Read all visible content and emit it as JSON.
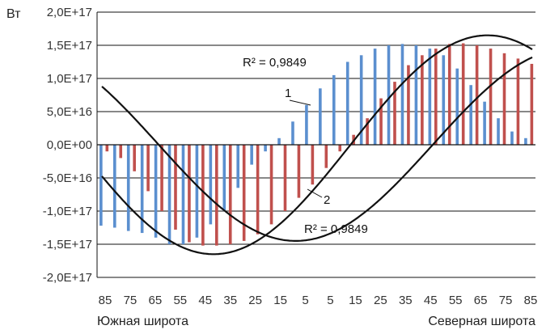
{
  "chart_data": {
    "type": "bar",
    "ylabel": "Вт",
    "ylim": [
      -2e+17,
      2e+17
    ],
    "yticks": [
      {
        "value": 2e+17,
        "label": "2,0E+17"
      },
      {
        "value": 1.5e+17,
        "label": "1,5E+17"
      },
      {
        "value": 1e+17,
        "label": "1,0E+17"
      },
      {
        "value": 5e+16,
        "label": "5,0E+16"
      },
      {
        "value": 0,
        "label": "0,0E+00"
      },
      {
        "value": -5e+16,
        "label": "-5,0E+16"
      },
      {
        "value": -1e+17,
        "label": "-1,0E+17"
      },
      {
        "value": -1.5e+17,
        "label": "-1,5E+17"
      },
      {
        "value": -2e+17,
        "label": "-2,0E+17"
      }
    ],
    "x_tick_labels": [
      "85",
      "75",
      "65",
      "55",
      "45",
      "35",
      "25",
      "15",
      "5",
      "5",
      "15",
      "25",
      "35",
      "45",
      "55",
      "65",
      "75",
      "85"
    ],
    "x_region_left": "Южная широта",
    "x_region_right": "Северная широта",
    "grid": true,
    "series": [
      {
        "color": "#5b8fcf",
        "values": [
          -1.22e+17,
          -1.25e+17,
          -1.3e+17,
          -1.33e+17,
          -1.4e+17,
          -1.5e+17,
          -1.5e+17,
          -1.4e+17,
          -1.2e+17,
          -1e+17,
          -6.5e+16,
          -3e+16,
          -1e+16,
          1e+16,
          3.5e+16,
          6e+16,
          8.5e+16,
          1.05e+17,
          1.25e+17,
          1.35e+17,
          1.45e+17,
          1.5e+17,
          1.52e+17,
          1.5e+17,
          1.45e+17,
          1.35e+17,
          1.15e+17,
          9e+16,
          6.5e+16,
          4e+16,
          2e+16,
          1e+16
        ]
      },
      {
        "color": "#c0504d",
        "values": [
          -1e+16,
          -2e+16,
          -4e+16,
          -7e+16,
          -1e+17,
          -1.28e+17,
          -1.47e+17,
          -1.52e+17,
          -1.52e+17,
          -1.5e+17,
          -1.45e+17,
          -1.35e+17,
          -1.2e+17,
          -1e+17,
          -8e+16,
          -6e+16,
          -3.5e+16,
          -1e+16,
          1.5e+16,
          4e+16,
          7e+16,
          9.5e+16,
          1.2e+17,
          1.35e+17,
          1.45e+17,
          1.52e+17,
          1.53e+17,
          1.5e+17,
          1.45e+17,
          1.38e+17,
          1.3e+17,
          1.22e+17
        ]
      }
    ],
    "trendlines": [
      {
        "label": "1",
        "r2_label": "R² = 0,9849",
        "amplitude": 1.65e+17,
        "peak_index": 28
      },
      {
        "label": "2",
        "r2_label": "R² = 0,9849",
        "amplitude": 1.45e+17,
        "peak_index": 34
      }
    ]
  }
}
